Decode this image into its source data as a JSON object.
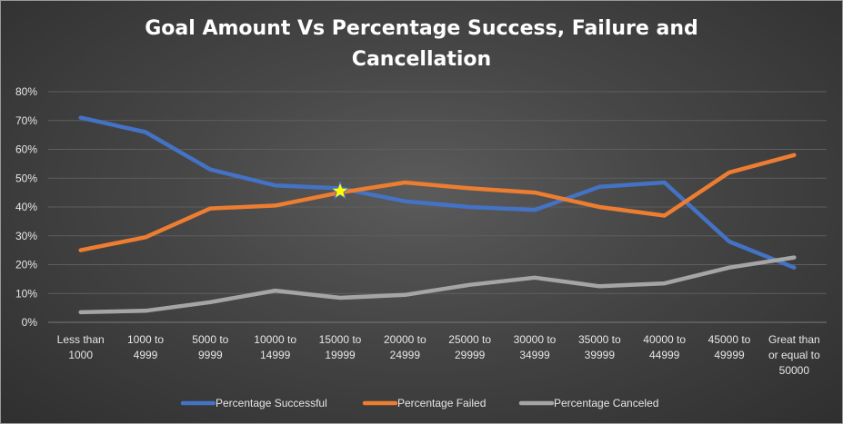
{
  "chart_data": {
    "type": "line",
    "title_lines": [
      "Goal Amount Vs Percentage Success, Failure and",
      "Cancellation"
    ],
    "categories": [
      [
        "Less than",
        "1000"
      ],
      [
        "1000 to",
        "4999"
      ],
      [
        "5000 to",
        "9999"
      ],
      [
        "10000 to",
        "14999"
      ],
      [
        "15000 to",
        "19999"
      ],
      [
        "20000 to",
        "24999"
      ],
      [
        "25000 to",
        "29999"
      ],
      [
        "30000 to",
        "34999"
      ],
      [
        "35000 to",
        "39999"
      ],
      [
        "40000 to",
        "44999"
      ],
      [
        "45000 to",
        "49999"
      ],
      [
        "Great than",
        "or equal to",
        "50000"
      ]
    ],
    "y_ticks": [
      "0%",
      "10%",
      "20%",
      "30%",
      "40%",
      "50%",
      "60%",
      "70%",
      "80%"
    ],
    "ylim": [
      0,
      80
    ],
    "grid": true,
    "legend_position": "bottom",
    "series": [
      {
        "name": "Percentage Successful",
        "color": "#4472c4",
        "values": [
          71,
          66,
          53,
          47.5,
          46.5,
          42,
          40,
          39,
          47,
          48.5,
          28,
          19
        ]
      },
      {
        "name": "Percentage Failed",
        "color": "#ed7d31",
        "values": [
          25,
          29.5,
          39.5,
          40.5,
          45,
          48.5,
          46.5,
          45,
          40,
          37,
          52,
          58
        ]
      },
      {
        "name": "Percentage Canceled",
        "color": "#a5a5a5",
        "values": [
          3.5,
          4,
          7,
          11,
          8.5,
          9.5,
          13,
          15.5,
          12.5,
          13.5,
          19,
          22.5
        ]
      }
    ],
    "annotation": {
      "type": "star-marker",
      "color": "#ffff00",
      "x_index": 4,
      "y": 45.5
    }
  }
}
